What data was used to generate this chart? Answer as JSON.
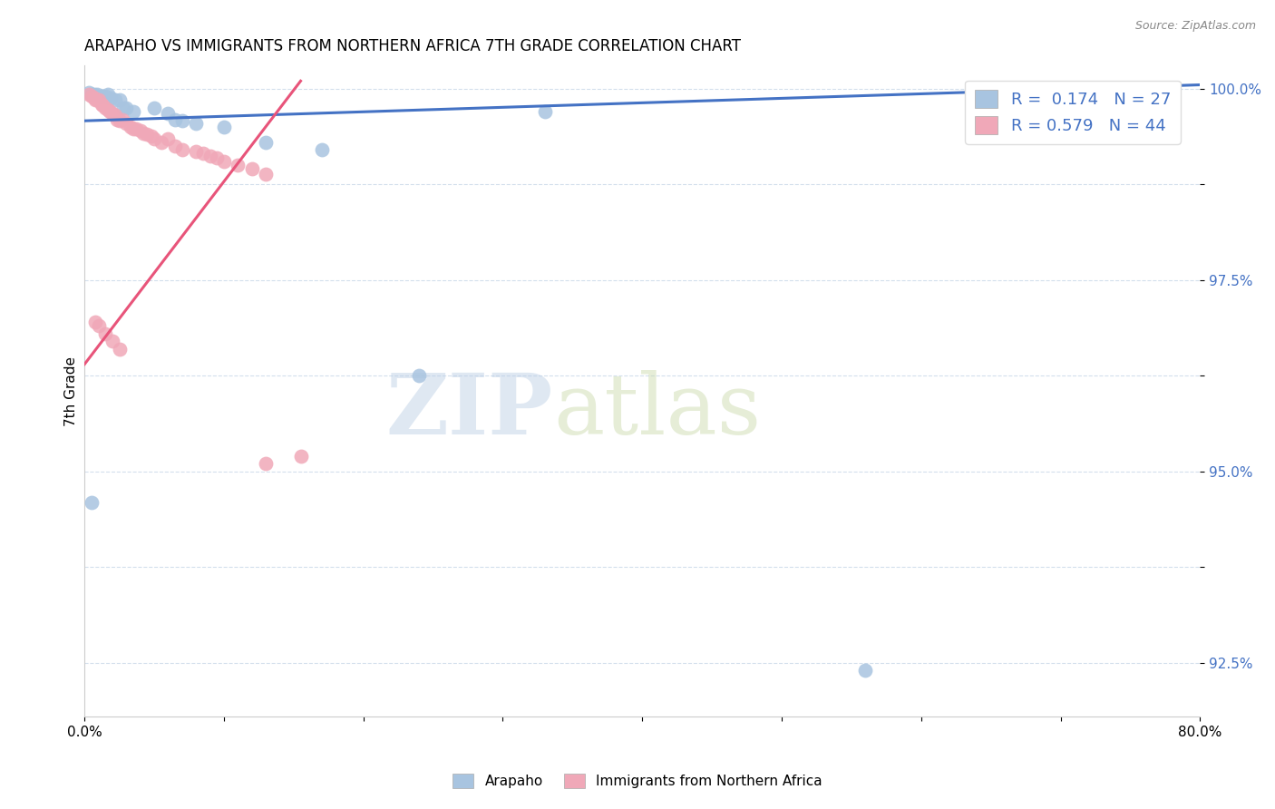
{
  "title": "ARAPAHO VS IMMIGRANTS FROM NORTHERN AFRICA 7TH GRADE CORRELATION CHART",
  "source": "Source: ZipAtlas.com",
  "ylabel": "7th Grade",
  "watermark_zip": "ZIP",
  "watermark_atlas": "atlas",
  "xmin": 0.0,
  "xmax": 0.8,
  "ymin": 0.918,
  "ymax": 1.003,
  "yticks": [
    0.925,
    0.9375,
    0.95,
    0.9625,
    0.975,
    0.9875,
    1.0
  ],
  "ytick_labels": [
    "92.5%",
    "",
    "95.0%",
    "",
    "97.5%",
    "",
    "100.0%"
  ],
  "xticks": [
    0.0,
    0.1,
    0.2,
    0.3,
    0.4,
    0.5,
    0.6,
    0.7,
    0.8
  ],
  "xtick_labels": [
    "0.0%",
    "",
    "",
    "",
    "",
    "",
    "",
    "",
    "80.0%"
  ],
  "blue_R": 0.174,
  "blue_N": 27,
  "pink_R": 0.579,
  "pink_N": 44,
  "blue_color": "#a8c4e0",
  "pink_color": "#f0a8b8",
  "blue_line_color": "#4472c4",
  "pink_line_color": "#e8547a",
  "blue_scatter_x": [
    0.003,
    0.005,
    0.007,
    0.009,
    0.011,
    0.013,
    0.015,
    0.017,
    0.019,
    0.022,
    0.025,
    0.028,
    0.03,
    0.035,
    0.05,
    0.06,
    0.065,
    0.07,
    0.08,
    0.1,
    0.13,
    0.17,
    0.33,
    0.56,
    0.76,
    0.24,
    0.005
  ],
  "blue_scatter_y": [
    0.9995,
    0.9993,
    0.9992,
    0.9992,
    0.999,
    0.999,
    0.999,
    0.9992,
    0.9988,
    0.9985,
    0.9985,
    0.9975,
    0.9975,
    0.997,
    0.9975,
    0.9968,
    0.996,
    0.9958,
    0.9955,
    0.995,
    0.993,
    0.992,
    0.997,
    0.924,
    0.999,
    0.9625,
    0.946
  ],
  "pink_scatter_x": [
    0.003,
    0.005,
    0.007,
    0.008,
    0.009,
    0.01,
    0.012,
    0.013,
    0.015,
    0.017,
    0.018,
    0.02,
    0.022,
    0.023,
    0.025,
    0.027,
    0.03,
    0.033,
    0.035,
    0.037,
    0.04,
    0.042,
    0.045,
    0.048,
    0.05,
    0.055,
    0.06,
    0.065,
    0.07,
    0.08,
    0.085,
    0.09,
    0.095,
    0.1,
    0.11,
    0.12,
    0.13,
    0.008,
    0.01,
    0.015,
    0.02,
    0.025,
    0.155,
    0.13
  ],
  "pink_scatter_y": [
    0.9993,
    0.999,
    0.9988,
    0.9985,
    0.9985,
    0.9985,
    0.998,
    0.9978,
    0.9975,
    0.9972,
    0.997,
    0.9968,
    0.9965,
    0.996,
    0.9958,
    0.996,
    0.9955,
    0.995,
    0.9948,
    0.9948,
    0.9945,
    0.9942,
    0.994,
    0.9938,
    0.9935,
    0.993,
    0.9935,
    0.9925,
    0.992,
    0.9918,
    0.9915,
    0.9912,
    0.991,
    0.9905,
    0.99,
    0.9895,
    0.9888,
    0.9695,
    0.969,
    0.968,
    0.967,
    0.966,
    0.952,
    0.951
  ],
  "blue_trendline_x": [
    0.0,
    0.8
  ],
  "blue_trendline_y": [
    0.9958,
    1.0005
  ],
  "pink_trendline_x": [
    0.0,
    0.155
  ],
  "pink_trendline_y": [
    0.964,
    1.001
  ]
}
